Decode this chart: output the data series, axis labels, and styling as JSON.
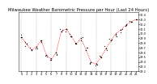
{
  "title": "Milwaukee Weather Barometric Pressure per Hour (Last 24 Hours)",
  "hours": [
    0,
    1,
    2,
    3,
    4,
    5,
    6,
    7,
    8,
    9,
    10,
    11,
    12,
    13,
    14,
    15,
    16,
    17,
    18,
    19,
    20,
    21,
    22,
    23
  ],
  "pressure": [
    29.92,
    29.78,
    29.65,
    29.72,
    29.85,
    29.55,
    29.45,
    29.6,
    30.05,
    30.1,
    29.95,
    29.78,
    29.9,
    29.65,
    29.4,
    29.35,
    29.5,
    29.68,
    29.85,
    30.0,
    30.08,
    30.18,
    30.25,
    30.3
  ],
  "scatter_offsets": [
    0.02,
    -0.05,
    0.03,
    -0.02,
    0.04,
    -0.03,
    0.02,
    -0.04,
    0.03,
    -0.02,
    0.05,
    -0.03,
    0.02,
    -0.05,
    0.03,
    -0.02,
    0.04,
    -0.03,
    0.02,
    -0.04,
    0.03,
    -0.02,
    0.01,
    0.0
  ],
  "ylim": [
    29.2,
    30.45
  ],
  "yticks": [
    29.2,
    29.3,
    29.4,
    29.5,
    29.6,
    29.7,
    29.8,
    29.9,
    30.0,
    30.1,
    30.2,
    30.3,
    30.4
  ],
  "ytick_labels": [
    "29.2",
    "29.3",
    "29.4",
    "29.5",
    "29.6",
    "29.7",
    "29.8",
    "29.9",
    "30.0",
    "30.1",
    "30.2",
    "30.3",
    "30.4"
  ],
  "xtick_positions": [
    0,
    1,
    2,
    3,
    4,
    5,
    6,
    7,
    8,
    9,
    10,
    11,
    12,
    13,
    14,
    15,
    16,
    17,
    18,
    19,
    20,
    21,
    22,
    23
  ],
  "xtick_labels": [
    "0",
    "1",
    "2",
    "3",
    "4",
    "5",
    "6",
    "7",
    "8",
    "9",
    "10",
    "11",
    "12",
    "13",
    "14",
    "15",
    "16",
    "17",
    "18",
    "19",
    "20",
    "21",
    "22",
    "23"
  ],
  "vgrid_positions": [
    0,
    3,
    6,
    9,
    12,
    15,
    18,
    21
  ],
  "line_color": "#ff0000",
  "dot_color": "#000000",
  "grid_color": "#888888",
  "bg_color": "#ffffff",
  "plot_bg_color": "#ffffff",
  "title_fontsize": 3.8,
  "tick_fontsize": 2.5,
  "line_width": 0.5,
  "dot_size": 1.2
}
